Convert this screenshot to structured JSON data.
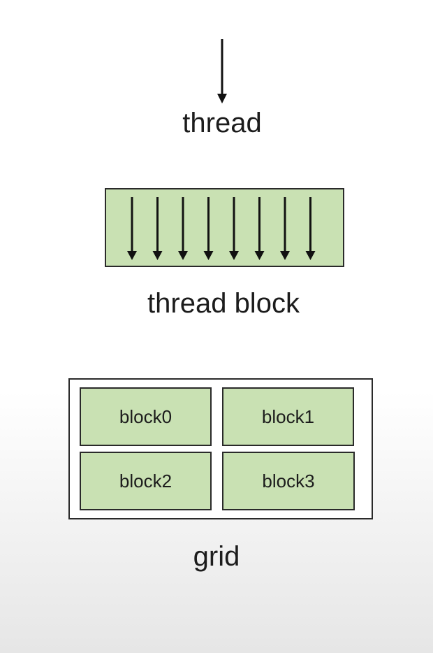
{
  "thread": {
    "label": "thread"
  },
  "thread_block": {
    "label": "thread block",
    "thread_count": 8
  },
  "grid": {
    "label": "grid",
    "blocks": [
      "block0",
      "block1",
      "block2",
      "block3"
    ]
  },
  "colors": {
    "block_fill": "#c9e1b3",
    "outline": "#2a2a2a",
    "text": "#1c1c1c"
  }
}
